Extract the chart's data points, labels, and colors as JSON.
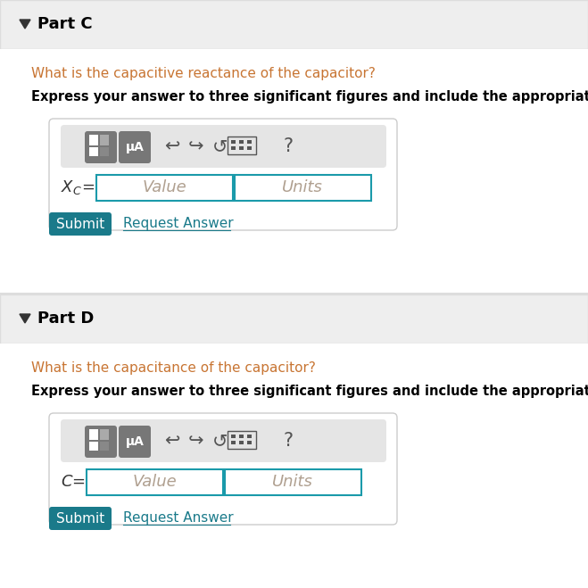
{
  "bg_color": "#ffffff",
  "header_bg": "#eeeeee",
  "part_c_header": "Part C",
  "part_d_header": "Part D",
  "question_c": "What is the capacitive reactance of the capacitor?",
  "question_d": "What is the capacitance of the capacitor?",
  "instruction": "Express your answer to three significant figures and include the appropriate units.",
  "placeholder_value": "Value",
  "placeholder_units": "Units",
  "submit_text": "Submit",
  "request_text": "Request Answer",
  "question_color": "#c87533",
  "instruction_color": "#000000",
  "header_color": "#000000",
  "submit_bg": "#1a7a8a",
  "submit_text_color": "#ffffff",
  "request_color": "#1a7a8a",
  "input_border_color": "#1a9aaa",
  "box_border_color": "#cccccc",
  "placeholder_color": "#b0a090",
  "icon_color": "#555555",
  "triangle_color": "#333333",
  "toolbar_bg": "#e5e5e5",
  "button_bg": "#777777"
}
